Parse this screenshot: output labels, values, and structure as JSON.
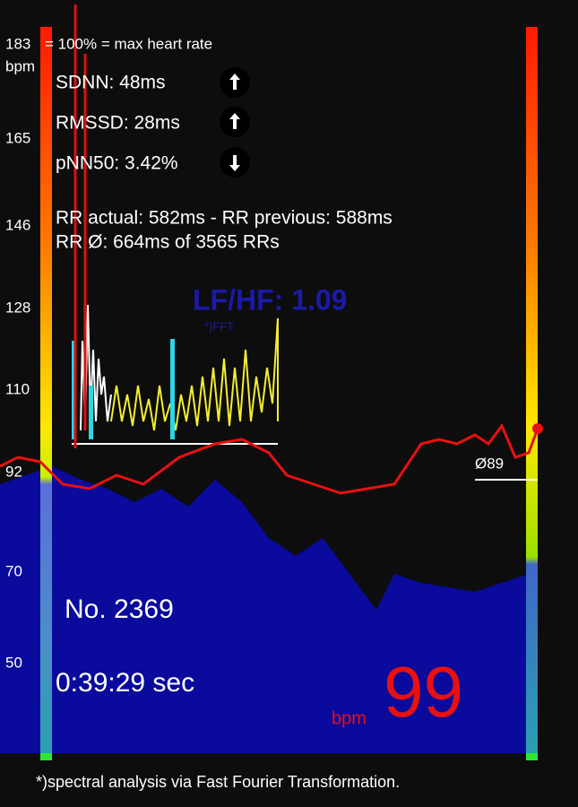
{
  "scale": {
    "top": "183",
    "unit": "bpm",
    "max_note": "= 100% = max heart rate",
    "ticks": [
      "165",
      "146",
      "128",
      "110",
      "92",
      "70",
      "50"
    ]
  },
  "stats": {
    "sdnn": "SDNN:   48ms",
    "rmssd": "RMSSD: 28ms",
    "pnn50": "pNN50: 3.42%"
  },
  "rr": {
    "actual": "RR actual: 582ms - RR previous: 588ms",
    "average": "RR Ø: 664ms  of 3565 RRs"
  },
  "spectrum": {
    "ratio": "LF/HF: 1.09",
    "note": "*)FFT"
  },
  "average_marker": "Ø89",
  "counter": "No. 2369",
  "elapsed": "0:39:29 sec",
  "current": {
    "unit": "bpm",
    "value": "99"
  },
  "footer": "*)spectral analysis via Fast Fourier Transformation."
}
